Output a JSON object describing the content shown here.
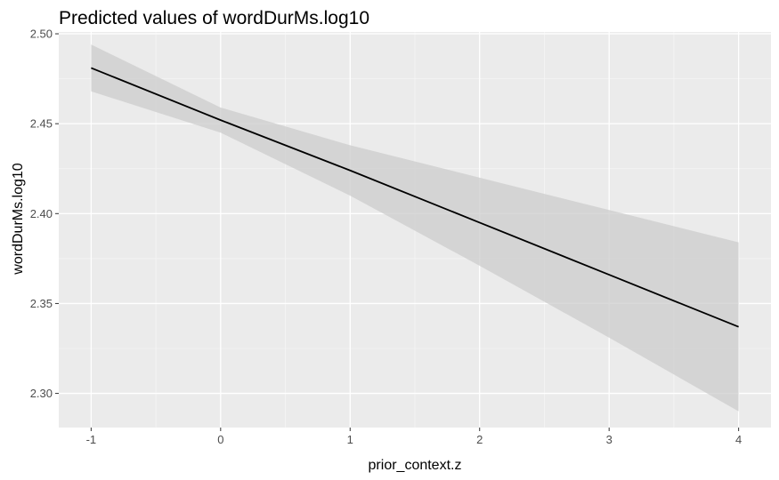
{
  "chart_data": {
    "type": "line",
    "title": "Predicted values of wordDurMs.log10",
    "xlabel": "prior_context.z",
    "ylabel": "wordDurMs.log10",
    "xlim": [
      -1.25,
      4.25
    ],
    "ylim": [
      2.281,
      2.501
    ],
    "x_ticks": [
      -1,
      0,
      1,
      2,
      3,
      4
    ],
    "x_tick_labels": [
      "-1",
      "0",
      "1",
      "2",
      "3",
      "4"
    ],
    "x_minor_ticks": [
      -0.5,
      0.5,
      1.5,
      2.5,
      3.5
    ],
    "y_ticks": [
      2.3,
      2.35,
      2.4,
      2.45,
      2.5
    ],
    "y_tick_labels": [
      "2.30",
      "2.35",
      "2.40",
      "2.45",
      "2.50"
    ],
    "y_minor_ticks": [
      2.325,
      2.375,
      2.425,
      2.475
    ],
    "grid": true,
    "series": [
      {
        "x": [
          -1,
          0,
          1,
          2,
          3,
          4
        ],
        "y": [
          2.481,
          2.452,
          2.424,
          2.395,
          2.366,
          2.337
        ],
        "ci_lower": [
          2.468,
          2.445,
          2.41,
          2.371,
          2.331,
          2.29
        ],
        "ci_upper": [
          2.494,
          2.459,
          2.438,
          2.42,
          2.402,
          2.384
        ]
      }
    ],
    "colors": {
      "panel_background": "#EBEBEB",
      "grid_major": "#FFFFFF",
      "grid_minor": "#F5F5F5",
      "line": "#000000",
      "ribbon": "#CCCCCC",
      "tick": "#333333"
    }
  }
}
